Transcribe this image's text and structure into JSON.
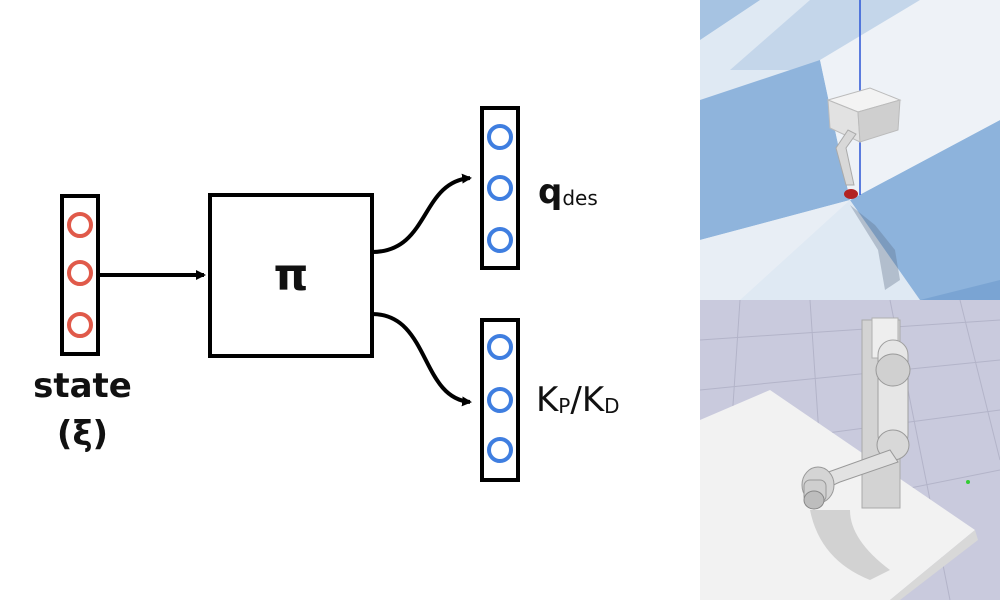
{
  "state_label": "state",
  "state_symbol": "(ξ)",
  "policy_symbol": "π",
  "output_q": {
    "main": "q",
    "sub": "des"
  },
  "output_k": {
    "k1": "K",
    "sub1": "P",
    "slash": "/",
    "k2": "K",
    "sub2": "D"
  },
  "colors": {
    "state_circles": "#e05a4a",
    "output_circles": "#3f7ee0",
    "stroke": "#000000",
    "sky_top": "#a7c5e3",
    "sim_bg_bottom": "#c7c9dc"
  }
}
